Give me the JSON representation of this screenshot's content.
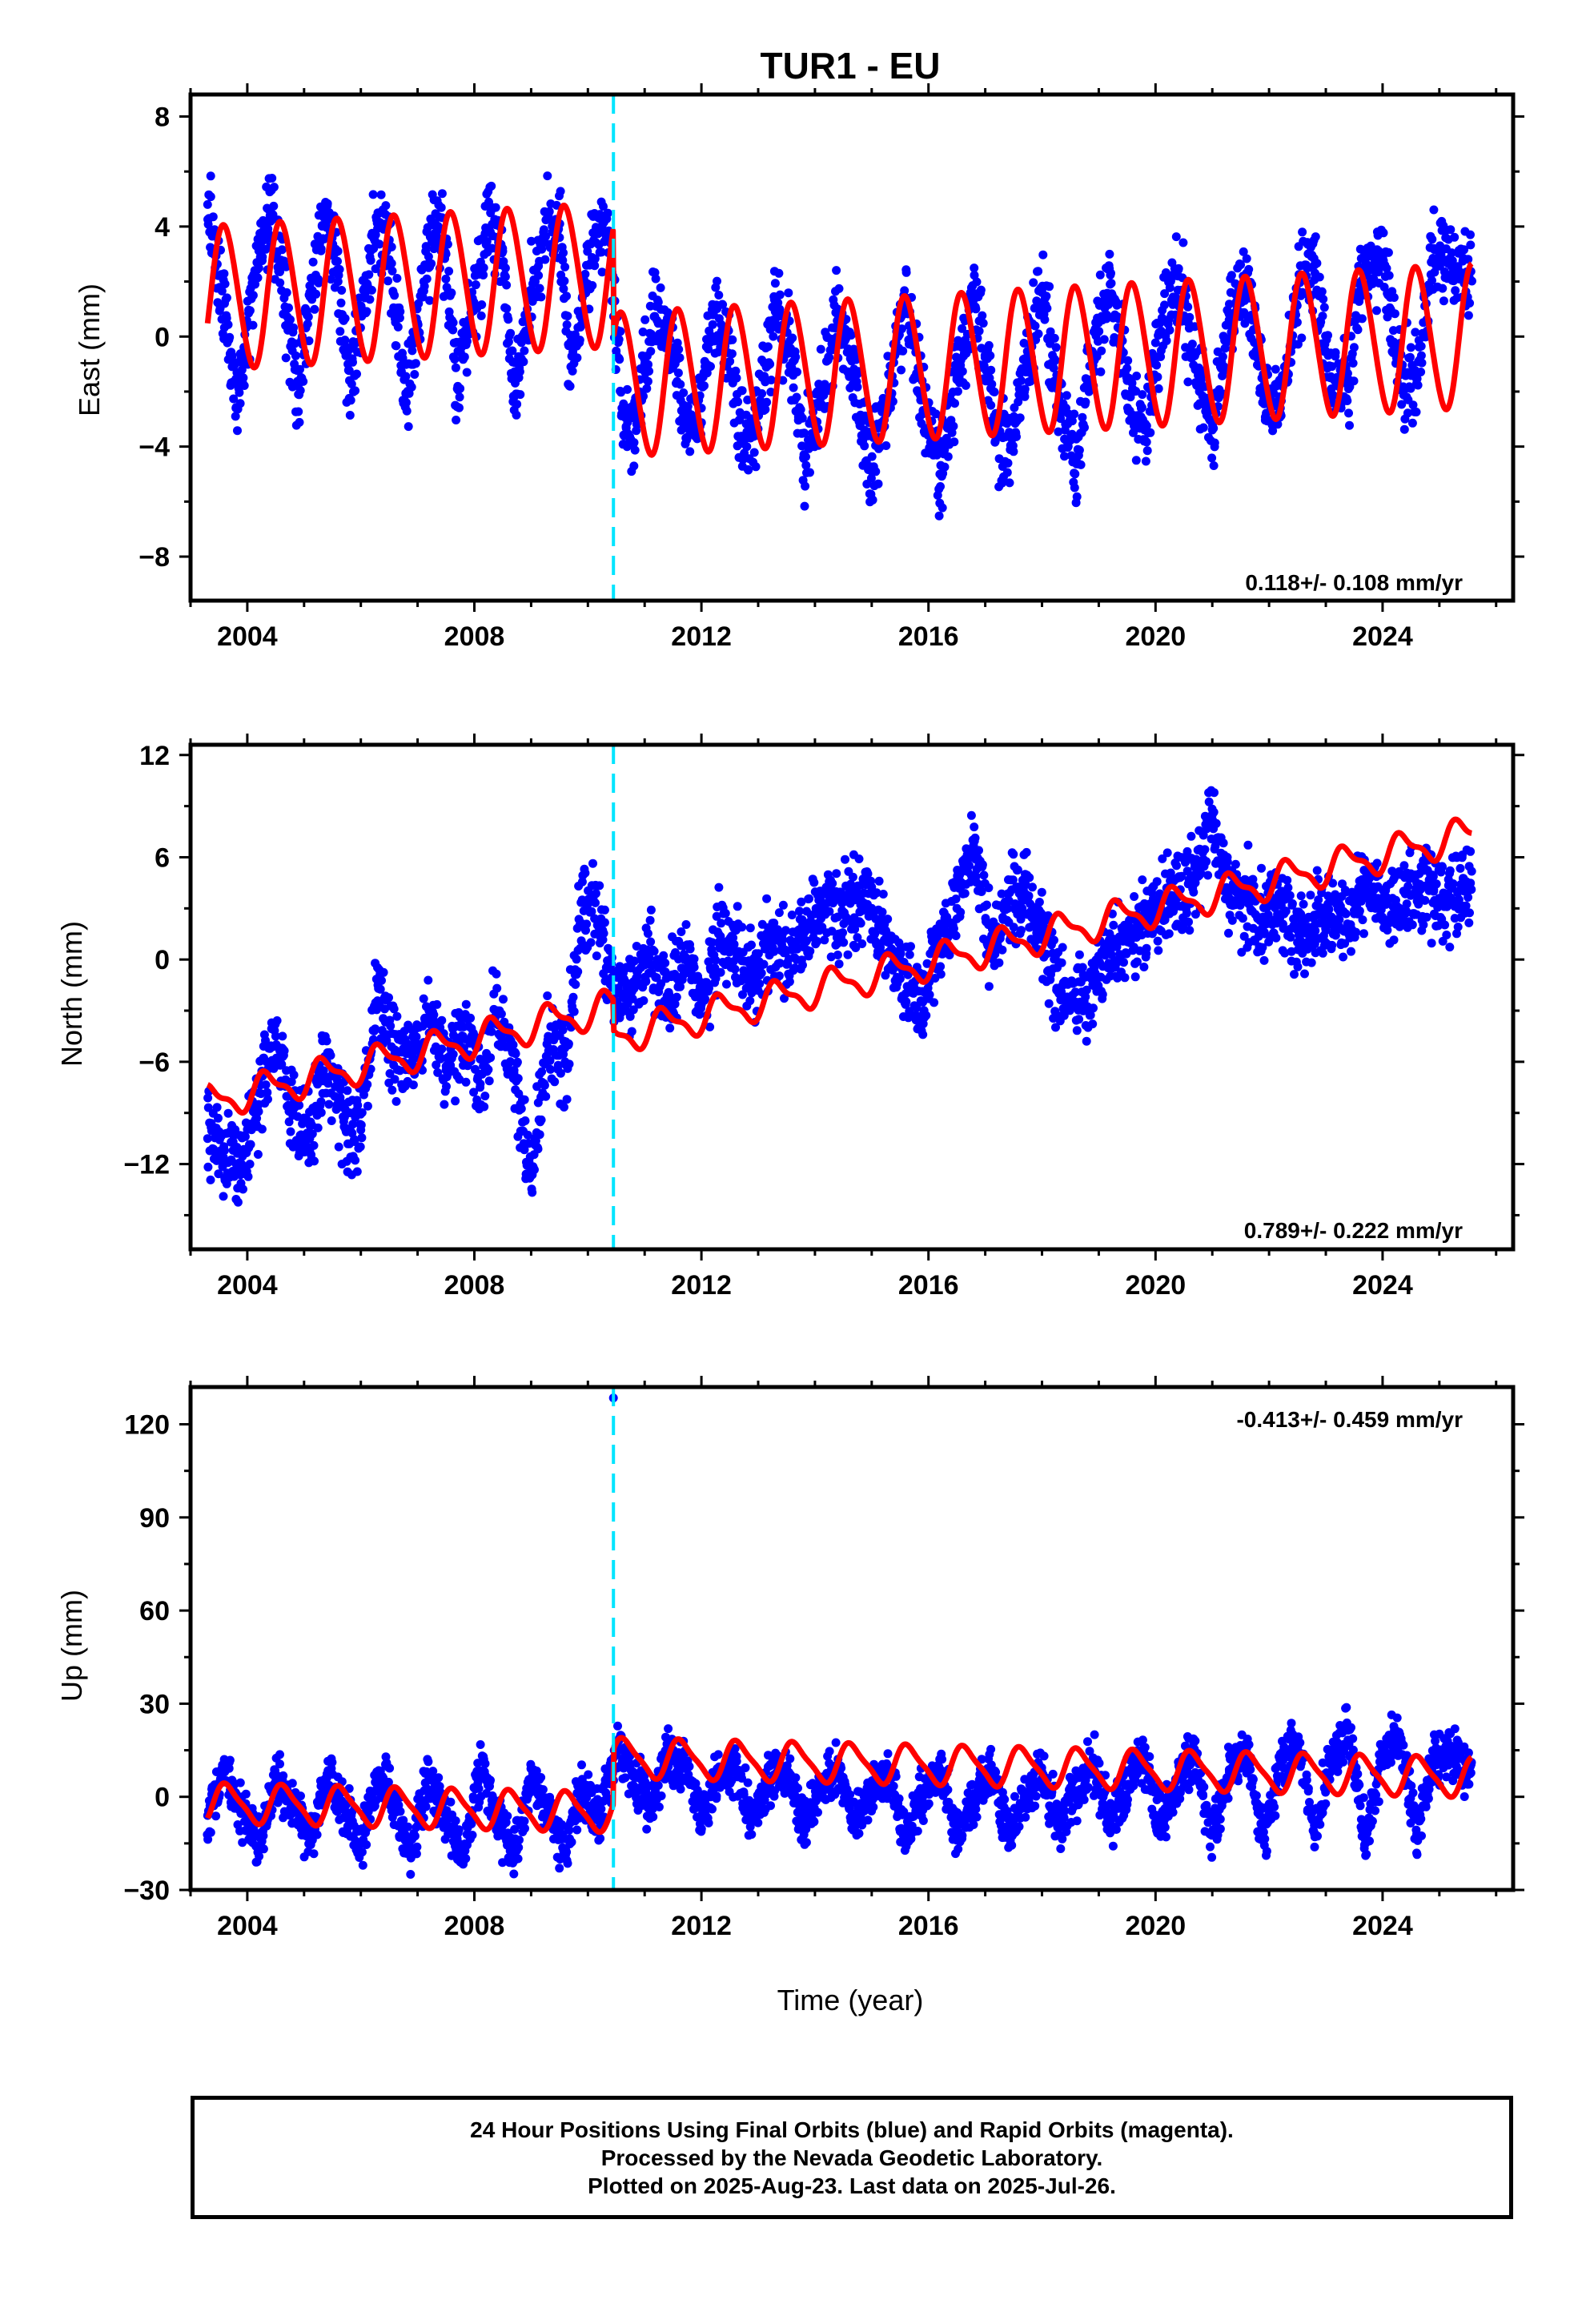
{
  "colors": {
    "points": "#0000ff",
    "model": "#ff0000",
    "offset": "#00e5ff",
    "frame": "#000000"
  },
  "footer": {
    "line1": "24 Hour Positions Using Final Orbits (blue) and Rapid Orbits (magenta).",
    "line2": "Processed by the Nevada Geodetic Laboratory.",
    "line3": "Plotted on 2025-Aug-23. Last data on 2025-Jul-26."
  },
  "chart_data": [
    {
      "type": "scatter",
      "title": "TUR1 - EU",
      "xlabel": "",
      "ylabel": "East (mm)",
      "xlim": [
        2003.0,
        2026.3
      ],
      "ylim": [
        -9.6,
        8.8
      ],
      "xticks": [
        2004,
        2008,
        2012,
        2016,
        2020,
        2024
      ],
      "yticks": [
        -8,
        -4,
        0,
        4,
        8
      ],
      "rate_label": "0.118+/- 0.108 mm/yr",
      "rate_position": "bottom-right",
      "grid": false,
      "data_start": 2003.3,
      "data_end": 2025.57,
      "equipment_offset": 2010.45,
      "series": [
        {
          "name": "",
          "style": "points",
          "x": [
            2003.3,
            2003.6,
            2003.8,
            2004.0,
            2004.2,
            2004.4,
            2004.7,
            2004.9,
            2005.1,
            2005.4,
            2005.6,
            2005.8,
            2006.0,
            2006.3,
            2006.5,
            2006.8,
            2007.0,
            2007.3,
            2007.5,
            2007.7,
            2007.9,
            2008.3,
            2008.5,
            2008.7,
            2008.9,
            2009.3,
            2009.5,
            2009.7,
            2009.9,
            2010.2,
            2010.4,
            2010.6,
            2010.8,
            2011.0,
            2011.2,
            2011.5,
            2011.7,
            2012.0,
            2012.2,
            2012.5,
            2012.8,
            2013.0,
            2013.3,
            2013.6,
            2013.8,
            2014.1,
            2014.4,
            2014.7,
            2015.0,
            2015.3,
            2015.6,
            2015.9,
            2016.2,
            2016.5,
            2016.8,
            2017.1,
            2017.4,
            2017.7,
            2018.0,
            2018.3,
            2018.6,
            2018.9,
            2019.2,
            2019.5,
            2019.8,
            2020.1,
            2020.4,
            2020.7,
            2021.0,
            2021.3,
            2021.6,
            2021.9,
            2022.2,
            2022.5,
            2022.8,
            2023.1,
            2023.4,
            2023.7,
            2024.0,
            2024.3,
            2024.6,
            2024.9,
            2025.2,
            2025.5
          ],
          "y": [
            4.8,
            1.2,
            -2.6,
            0.4,
            3.2,
            4.4,
            1.0,
            -2.1,
            1.6,
            4.3,
            2.0,
            -1.6,
            0.8,
            4.5,
            2.8,
            -2.4,
            0.5,
            4.1,
            3.0,
            -1.9,
            0.6,
            4.6,
            3.1,
            -2.2,
            0.2,
            4.4,
            3.6,
            -1.1,
            1.4,
            4.3,
            3.5,
            -2.6,
            -3.9,
            -1.0,
            1.1,
            -0.4,
            -3.3,
            -2.6,
            0.8,
            -0.9,
            -4.0,
            -2.8,
            0.9,
            -0.6,
            -4.4,
            -2.2,
            1.0,
            -1.7,
            -4.9,
            -2.0,
            1.3,
            -2.3,
            -5.0,
            -1.5,
            1.4,
            -2.5,
            -4.6,
            -0.8,
            1.6,
            -2.3,
            -4.5,
            -0.6,
            1.9,
            -1.6,
            -3.8,
            0.2,
            2.2,
            -1.2,
            -3.4,
            0.8,
            2.3,
            -1.8,
            -2.6,
            1.6,
            2.6,
            -1.9,
            -1.9,
            2.6,
            3.0,
            -1.4,
            -1.7,
            3.2,
            2.6,
            2.3
          ]
        },
        {
          "name": "",
          "style": "model",
          "rate_mm_per_yr": 0.118,
          "annual_amplitude": 2.6,
          "semiannual_amplitude": 0.2,
          "offset_at_break": -4.0,
          "level_before": 1.4,
          "phase": 0.35
        }
      ]
    },
    {
      "type": "scatter",
      "title": "",
      "xlabel": "",
      "ylabel": "North (mm)",
      "xlim": [
        2003.0,
        2026.3
      ],
      "ylim": [
        -17.0,
        12.6
      ],
      "xticks": [
        2004,
        2008,
        2012,
        2016,
        2020,
        2024
      ],
      "yticks": [
        -12,
        -6,
        0,
        6,
        12
      ],
      "rate_label": "0.789+/- 0.222 mm/yr",
      "rate_position": "bottom-right",
      "grid": false,
      "data_start": 2003.3,
      "data_end": 2025.57,
      "equipment_offset": 2010.45,
      "series": [
        {
          "name": "",
          "style": "points",
          "x": [
            2003.3,
            2003.6,
            2003.9,
            2004.2,
            2004.5,
            2004.8,
            2005.1,
            2005.4,
            2005.7,
            2006.0,
            2006.3,
            2006.6,
            2006.9,
            2007.2,
            2007.5,
            2007.8,
            2008.1,
            2008.4,
            2008.7,
            2009.0,
            2009.3,
            2009.6,
            2009.9,
            2010.2,
            2010.5,
            2010.8,
            2011.1,
            2011.4,
            2011.7,
            2012.0,
            2012.3,
            2012.6,
            2012.9,
            2013.2,
            2013.5,
            2013.8,
            2014.1,
            2014.4,
            2014.7,
            2015.0,
            2015.3,
            2015.6,
            2015.9,
            2016.2,
            2016.5,
            2016.8,
            2017.1,
            2017.4,
            2017.7,
            2018.0,
            2018.3,
            2018.6,
            2018.9,
            2019.2,
            2019.5,
            2019.8,
            2020.1,
            2020.4,
            2020.7,
            2021.0,
            2021.3,
            2021.6,
            2021.9,
            2022.2,
            2022.5,
            2022.8,
            2023.1,
            2023.4,
            2023.7,
            2024.0,
            2024.3,
            2024.6,
            2024.9,
            2025.2,
            2025.5
          ],
          "y": [
            -10.5,
            -11.2,
            -12.0,
            -8.5,
            -4.5,
            -9.0,
            -10.5,
            -6.0,
            -9.5,
            -10.0,
            -1.5,
            -5.5,
            -6.0,
            -3.0,
            -6.5,
            -4.5,
            -7.5,
            -3.0,
            -6.5,
            -12.5,
            -4.5,
            -6.0,
            3.5,
            2.0,
            -2.0,
            -1.5,
            0.5,
            -2.5,
            0.0,
            -2.5,
            1.0,
            0.5,
            -1.5,
            1.0,
            0.5,
            1.5,
            3.0,
            2.5,
            3.5,
            3.0,
            1.0,
            -2.0,
            -2.5,
            1.0,
            3.0,
            7.0,
            1.0,
            3.0,
            3.5,
            1.5,
            -2.0,
            -2.5,
            -1.5,
            0.5,
            1.5,
            2.0,
            3.5,
            4.0,
            4.5,
            8.5,
            3.5,
            3.5,
            2.5,
            3.5,
            1.0,
            2.0,
            2.5,
            2.0,
            4.5,
            3.5,
            3.0,
            4.5,
            4.0,
            3.5,
            4.0
          ]
        },
        {
          "name": "",
          "style": "model",
          "rate_mm_per_yr": 0.789,
          "annual_amplitude": 0.9,
          "semiannual_amplitude": 0.35,
          "offset_at_break": -1.8,
          "level_before": -8.4,
          "phase": 0.1
        }
      ]
    },
    {
      "type": "scatter",
      "title": "",
      "xlabel": "Time (year)",
      "ylabel": "Up (mm)",
      "xlim": [
        2003.0,
        2026.3
      ],
      "ylim": [
        -30.0,
        132.0
      ],
      "xticks": [
        2004,
        2008,
        2012,
        2016,
        2020,
        2024
      ],
      "yticks": [
        -30,
        0,
        30,
        60,
        90,
        120
      ],
      "rate_label": "-0.413+/- 0.459 mm/yr",
      "rate_position": "top-right",
      "grid": false,
      "data_start": 2003.3,
      "data_end": 2025.57,
      "equipment_offset": 2010.45,
      "outlier": {
        "x": 2010.45,
        "y": 128.5
      },
      "series": [
        {
          "name": "",
          "style": "points",
          "x": [
            2003.3,
            2003.6,
            2003.9,
            2004.2,
            2004.5,
            2004.8,
            2005.1,
            2005.4,
            2005.7,
            2006.0,
            2006.3,
            2006.6,
            2006.9,
            2007.2,
            2007.5,
            2007.8,
            2008.1,
            2008.4,
            2008.7,
            2009.0,
            2009.3,
            2009.6,
            2009.9,
            2010.2,
            2010.5,
            2010.8,
            2011.1,
            2011.4,
            2011.7,
            2012.0,
            2012.3,
            2012.6,
            2012.9,
            2013.2,
            2013.5,
            2013.8,
            2014.1,
            2014.4,
            2014.7,
            2015.0,
            2015.3,
            2015.6,
            2015.9,
            2016.2,
            2016.5,
            2016.8,
            2017.1,
            2017.4,
            2017.7,
            2018.0,
            2018.3,
            2018.6,
            2018.9,
            2019.2,
            2019.5,
            2019.8,
            2020.1,
            2020.4,
            2020.7,
            2021.0,
            2021.3,
            2021.6,
            2021.9,
            2022.2,
            2022.5,
            2022.8,
            2023.1,
            2023.4,
            2023.7,
            2024.0,
            2024.3,
            2024.6,
            2024.9,
            2025.2,
            2025.5
          ],
          "y": [
            -6.0,
            8.0,
            -4.0,
            -16.0,
            5.0,
            -2.0,
            -14.0,
            6.0,
            -4.0,
            -15.0,
            7.0,
            -3.0,
            -18.0,
            6.0,
            -5.0,
            -20.0,
            8.0,
            -6.0,
            -18.0,
            6.0,
            -4.0,
            -19.0,
            4.0,
            -8.0,
            16.0,
            8.0,
            -4.0,
            12.0,
            10.0,
            -6.0,
            6.0,
            8.0,
            -8.0,
            5.0,
            9.0,
            -9.0,
            2.0,
            10.0,
            -10.0,
            2.0,
            8.0,
            -12.0,
            0.0,
            9.0,
            -14.0,
            1.0,
            8.0,
            -12.0,
            0.0,
            8.0,
            -10.0,
            2.0,
            10.0,
            -8.0,
            4.0,
            14.0,
            -10.0,
            6.0,
            12.0,
            -12.0,
            8.0,
            16.0,
            -14.0,
            10.0,
            18.0,
            -12.0,
            12.0,
            22.0,
            -14.0,
            14.0,
            20.0,
            -12.0,
            12.0,
            16.0,
            10.0
          ]
        },
        {
          "name": "",
          "style": "model",
          "rate_mm_per_yr": -0.413,
          "annual_amplitude": 6.0,
          "semiannual_amplitude": 1.4,
          "offset_at_break": 17.5,
          "level_before": -2.0,
          "phase": 0.4
        }
      ]
    }
  ]
}
